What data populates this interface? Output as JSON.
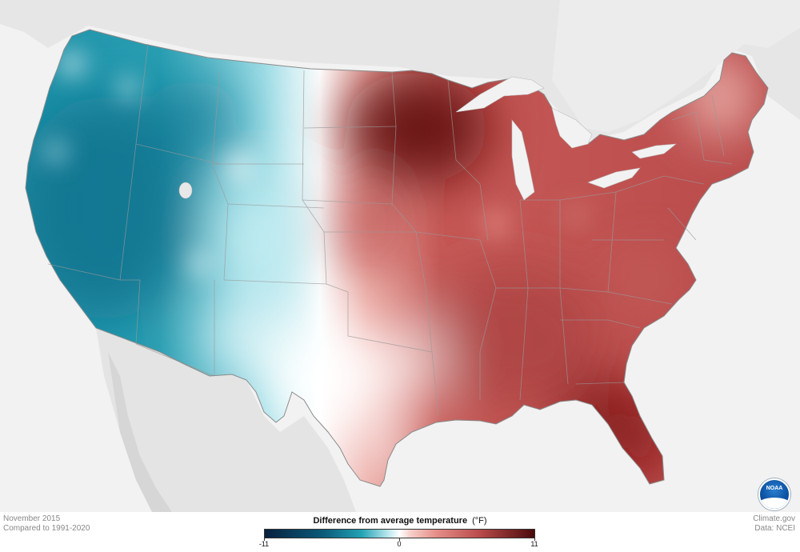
{
  "map": {
    "period": "November 2015",
    "baseline": "Compared to 1991-2020",
    "legend_title": "Difference from average temperature",
    "legend_unit": "(°F)",
    "legend_min": "-11",
    "legend_mid": "0",
    "legend_max": "11",
    "credit_site": "Climate.gov",
    "credit_data": "Data: NCEI",
    "logo_text": "NOAA",
    "colors": {
      "cold_extreme": "#07203f",
      "cold": "#23a3b4",
      "neutral": "#ffffff",
      "warm": "#e48c86",
      "warm_extreme": "#4a0a0a",
      "land_background": "#e4e4e4",
      "water_background": "#f2f2f2"
    }
  }
}
